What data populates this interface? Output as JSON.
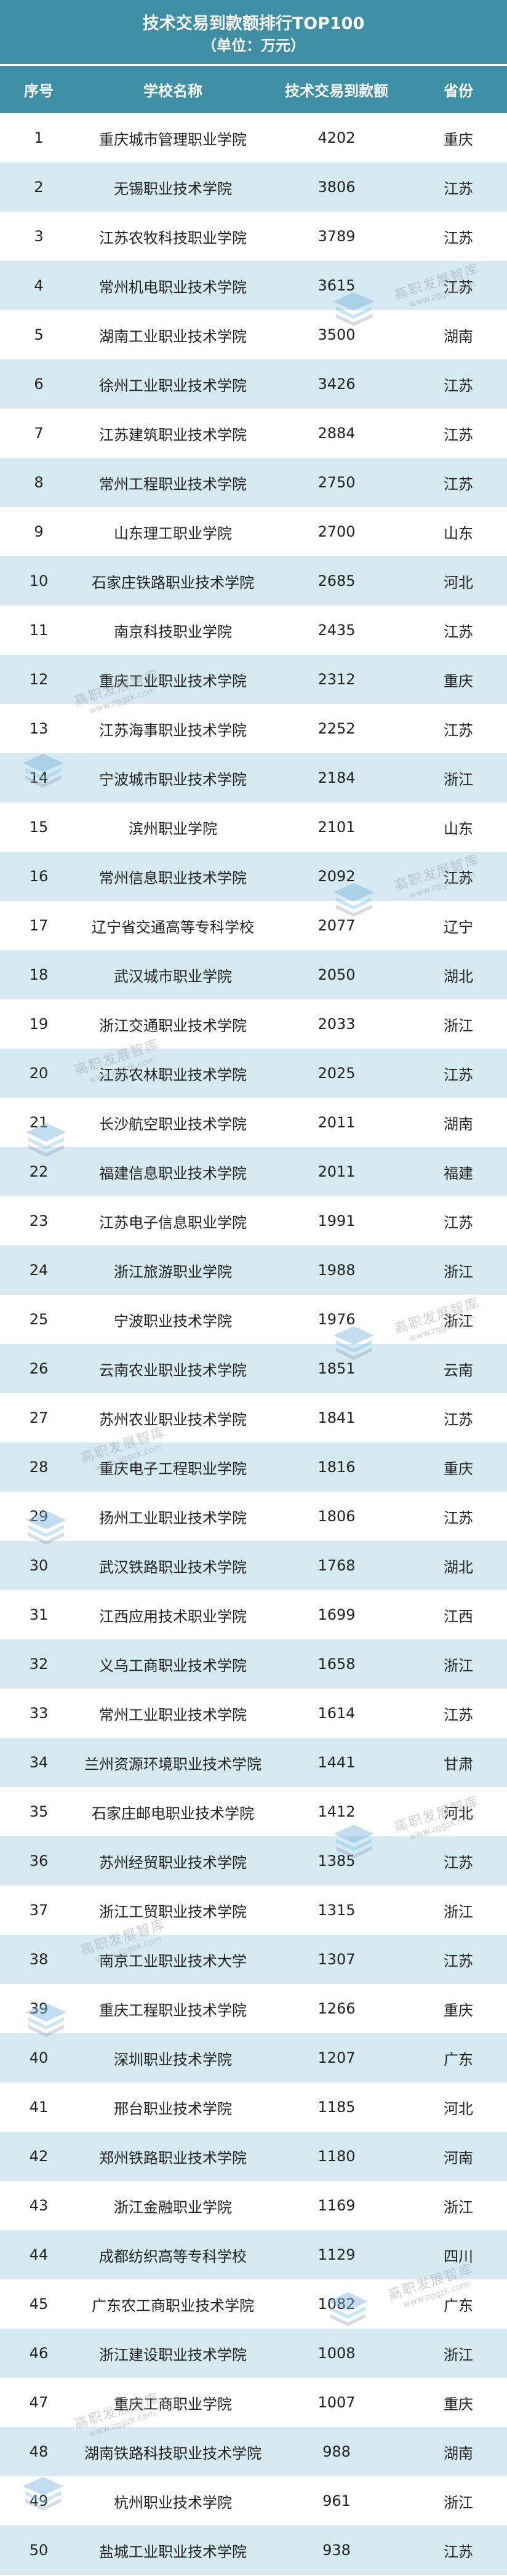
{
  "title": "技术交易到款额排行TOP100",
  "subtitle": "（单位：万元）",
  "columns": [
    "序号",
    "学校名称",
    "技术交易到款额",
    "省份"
  ],
  "watermark": {
    "text": "高职发展智库",
    "url": "www.zggzk.com"
  },
  "colors": {
    "header_bg": "#3f8fa4",
    "stripe": "#d5eaf0"
  },
  "rows": [
    [
      "1",
      "重庆城市管理职业学院",
      "4202",
      "重庆"
    ],
    [
      "2",
      "无锡职业技术学院",
      "3806",
      "江苏"
    ],
    [
      "3",
      "江苏农牧科技职业学院",
      "3789",
      "江苏"
    ],
    [
      "4",
      "常州机电职业技术学院",
      "3615",
      "江苏"
    ],
    [
      "5",
      "湖南工业职业技术学院",
      "3500",
      "湖南"
    ],
    [
      "6",
      "徐州工业职业技术学院",
      "3426",
      "江苏"
    ],
    [
      "7",
      "江苏建筑职业技术学院",
      "2884",
      "江苏"
    ],
    [
      "8",
      "常州工程职业技术学院",
      "2750",
      "江苏"
    ],
    [
      "9",
      "山东理工职业学院",
      "2700",
      "山东"
    ],
    [
      "10",
      "石家庄铁路职业技术学院",
      "2685",
      "河北"
    ],
    [
      "11",
      "南京科技职业学院",
      "2435",
      "江苏"
    ],
    [
      "12",
      "重庆工业职业技术学院",
      "2312",
      "重庆"
    ],
    [
      "13",
      "江苏海事职业技术学院",
      "2252",
      "江苏"
    ],
    [
      "14",
      "宁波城市职业技术学院",
      "2184",
      "浙江"
    ],
    [
      "15",
      "滨州职业学院",
      "2101",
      "山东"
    ],
    [
      "16",
      "常州信息职业技术学院",
      "2092",
      "江苏"
    ],
    [
      "17",
      "辽宁省交通高等专科学校",
      "2077",
      "辽宁"
    ],
    [
      "18",
      "武汉城市职业学院",
      "2050",
      "湖北"
    ],
    [
      "19",
      "浙江交通职业技术学院",
      "2033",
      "浙江"
    ],
    [
      "20",
      "江苏农林职业技术学院",
      "2025",
      "江苏"
    ],
    [
      "21",
      "长沙航空职业技术学院",
      "2011",
      "湖南"
    ],
    [
      "22",
      "福建信息职业技术学院",
      "2011",
      "福建"
    ],
    [
      "23",
      "江苏电子信息职业学院",
      "1991",
      "江苏"
    ],
    [
      "24",
      "浙江旅游职业学院",
      "1988",
      "浙江"
    ],
    [
      "25",
      "宁波职业技术学院",
      "1976",
      "浙江"
    ],
    [
      "26",
      "云南农业职业技术学院",
      "1851",
      "云南"
    ],
    [
      "27",
      "苏州农业职业技术学院",
      "1841",
      "江苏"
    ],
    [
      "28",
      "重庆电子工程职业学院",
      "1816",
      "重庆"
    ],
    [
      "29",
      "扬州工业职业技术学院",
      "1806",
      "江苏"
    ],
    [
      "30",
      "武汉铁路职业技术学院",
      "1768",
      "湖北"
    ],
    [
      "31",
      "江西应用技术职业学院",
      "1699",
      "江西"
    ],
    [
      "32",
      "义乌工商职业技术学院",
      "1658",
      "浙江"
    ],
    [
      "33",
      "常州工业职业技术学院",
      "1614",
      "江苏"
    ],
    [
      "34",
      "兰州资源环境职业技术学院",
      "1441",
      "甘肃"
    ],
    [
      "35",
      "石家庄邮电职业技术学院",
      "1412",
      "河北"
    ],
    [
      "36",
      "苏州经贸职业技术学院",
      "1385",
      "江苏"
    ],
    [
      "37",
      "浙江工贸职业技术学院",
      "1315",
      "浙江"
    ],
    [
      "38",
      "南京工业职业技术大学",
      "1307",
      "江苏"
    ],
    [
      "39",
      "重庆工程职业技术学院",
      "1266",
      "重庆"
    ],
    [
      "40",
      "深圳职业技术学院",
      "1207",
      "广东"
    ],
    [
      "41",
      "邢台职业技术学院",
      "1185",
      "河北"
    ],
    [
      "42",
      "郑州铁路职业技术学院",
      "1180",
      "河南"
    ],
    [
      "43",
      "浙江金融职业学院",
      "1169",
      "浙江"
    ],
    [
      "44",
      "成都纺织高等专科学校",
      "1129",
      "四川"
    ],
    [
      "45",
      "广东农工商职业技术学院",
      "1082",
      "广东"
    ],
    [
      "46",
      "浙江建设职业技术学院",
      "1008",
      "浙江"
    ],
    [
      "47",
      "重庆工商职业学院",
      "1007",
      "重庆"
    ],
    [
      "48",
      "湖南铁路科技职业技术学院",
      "988",
      "湖南"
    ],
    [
      "49",
      "杭州职业技术学院",
      "961",
      "浙江"
    ],
    [
      "50",
      "盐城工业职业技术学院",
      "938",
      "江苏"
    ]
  ]
}
